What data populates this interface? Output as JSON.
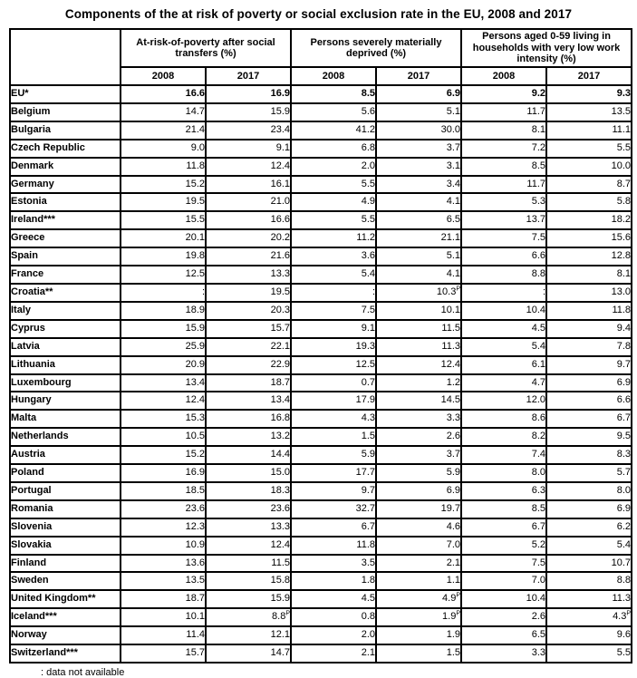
{
  "title": "Components of the at risk of poverty or social exclusion rate in the EU, 2008 and 2017",
  "footnote": ": data not available",
  "table": {
    "column_groups": [
      "At-risk-of-poverty after social transfers (%)",
      "Persons severely materially deprived (%)",
      "Persons aged 0-59 living in households with very low work intensity (%)"
    ],
    "year_headers": [
      "2008",
      "2017",
      "2008",
      "2017",
      "2008",
      "2017"
    ],
    "provisional_marker": "P",
    "rows": [
      {
        "country": "EU*",
        "bold": true,
        "values": [
          "16.6",
          "16.9",
          "8.5",
          "6.9",
          "9.2",
          "9.3"
        ]
      },
      {
        "country": "Belgium",
        "values": [
          "14.7",
          "15.9",
          "5.6",
          "5.1",
          "11.7",
          "13.5"
        ]
      },
      {
        "country": "Bulgaria",
        "values": [
          "21.4",
          "23.4",
          "41.2",
          "30.0",
          "8.1",
          "11.1"
        ]
      },
      {
        "country": "Czech Republic",
        "values": [
          "9.0",
          "9.1",
          "6.8",
          "3.7",
          "7.2",
          "5.5"
        ]
      },
      {
        "country": "Denmark",
        "values": [
          "11.8",
          "12.4",
          "2.0",
          "3.1",
          "8.5",
          "10.0"
        ]
      },
      {
        "country": "Germany",
        "values": [
          "15.2",
          "16.1",
          "5.5",
          "3.4",
          "11.7",
          "8.7"
        ]
      },
      {
        "country": "Estonia",
        "values": [
          "19.5",
          "21.0",
          "4.9",
          "4.1",
          "5.3",
          "5.8"
        ]
      },
      {
        "country": "Ireland***",
        "values": [
          "15.5",
          "16.6",
          "5.5",
          "6.5",
          "13.7",
          "18.2"
        ]
      },
      {
        "country": "Greece",
        "values": [
          "20.1",
          "20.2",
          "11.2",
          "21.1",
          "7.5",
          "15.6"
        ]
      },
      {
        "country": "Spain",
        "values": [
          "19.8",
          "21.6",
          "3.6",
          "5.1",
          "6.6",
          "12.8"
        ]
      },
      {
        "country": "France",
        "values": [
          "12.5",
          "13.3",
          "5.4",
          "4.1",
          "8.8",
          "8.1"
        ]
      },
      {
        "country": "Croatia**",
        "values": [
          ":",
          "19.5",
          ":",
          "10.3^p",
          ":",
          "13.0"
        ]
      },
      {
        "country": "Italy",
        "values": [
          "18.9",
          "20.3",
          "7.5",
          "10.1",
          "10.4",
          "11.8"
        ]
      },
      {
        "country": "Cyprus",
        "values": [
          "15.9",
          "15.7",
          "9.1",
          "11.5",
          "4.5",
          "9.4"
        ]
      },
      {
        "country": "Latvia",
        "values": [
          "25.9",
          "22.1",
          "19.3",
          "11.3",
          "5.4",
          "7.8"
        ]
      },
      {
        "country": "Lithuania",
        "values": [
          "20.9",
          "22.9",
          "12.5",
          "12.4",
          "6.1",
          "9.7"
        ]
      },
      {
        "country": "Luxembourg",
        "values": [
          "13.4",
          "18.7",
          "0.7",
          "1.2",
          "4.7",
          "6.9"
        ]
      },
      {
        "country": "Hungary",
        "values": [
          "12.4",
          "13.4",
          "17.9",
          "14.5",
          "12.0",
          "6.6"
        ]
      },
      {
        "country": "Malta",
        "values": [
          "15.3",
          "16.8",
          "4.3",
          "3.3",
          "8.6",
          "6.7"
        ]
      },
      {
        "country": "Netherlands",
        "values": [
          "10.5",
          "13.2",
          "1.5",
          "2.6",
          "8.2",
          "9.5"
        ]
      },
      {
        "country": "Austria",
        "values": [
          "15.2",
          "14.4",
          "5.9",
          "3.7",
          "7.4",
          "8.3"
        ]
      },
      {
        "country": "Poland",
        "values": [
          "16.9",
          "15.0",
          "17.7",
          "5.9",
          "8.0",
          "5.7"
        ]
      },
      {
        "country": "Portugal",
        "values": [
          "18.5",
          "18.3",
          "9.7",
          "6.9",
          "6.3",
          "8.0"
        ]
      },
      {
        "country": "Romania",
        "values": [
          "23.6",
          "23.6",
          "32.7",
          "19.7",
          "8.5",
          "6.9"
        ]
      },
      {
        "country": "Slovenia",
        "values": [
          "12.3",
          "13.3",
          "6.7",
          "4.6",
          "6.7",
          "6.2"
        ]
      },
      {
        "country": "Slovakia",
        "values": [
          "10.9",
          "12.4",
          "11.8",
          "7.0",
          "5.2",
          "5.4"
        ]
      },
      {
        "country": "Finland",
        "values": [
          "13.6",
          "11.5",
          "3.5",
          "2.1",
          "7.5",
          "10.7"
        ]
      },
      {
        "country": "Sweden",
        "values": [
          "13.5",
          "15.8",
          "1.8",
          "1.1",
          "7.0",
          "8.8"
        ]
      },
      {
        "country": "United Kingdom**",
        "values": [
          "18.7",
          "15.9",
          "4.5",
          "4.9^p",
          "10.4",
          "11.3"
        ]
      },
      {
        "country": "Iceland***",
        "values": [
          "10.1",
          "8.8^p",
          "0.8",
          "1.9^p",
          "2.6",
          "4.3^p"
        ]
      },
      {
        "country": "Norway",
        "values": [
          "11.4",
          "12.1",
          "2.0",
          "1.9",
          "6.5",
          "9.6"
        ]
      },
      {
        "country": "Switzerland***",
        "values": [
          "15.7",
          "14.7",
          "2.1",
          "1.5",
          "3.3",
          "5.5"
        ]
      }
    ]
  }
}
